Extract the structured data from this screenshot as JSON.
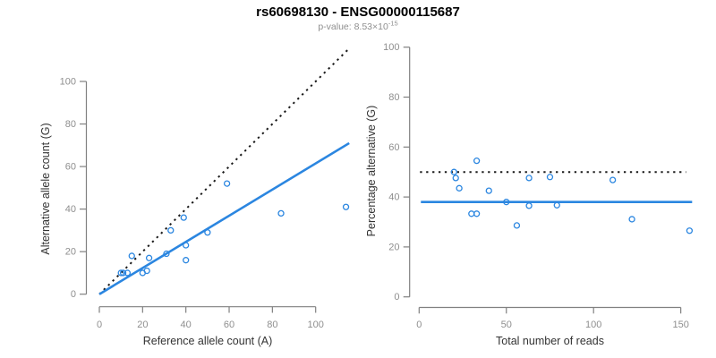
{
  "header": {
    "title": "rs60698130 - ENSG00000115687",
    "subtitle_prefix": "p-value: 8.53×10",
    "subtitle_exponent": "-15"
  },
  "colors": {
    "accent_blue": "#2b86e0",
    "line_black": "#1a1a1a",
    "axis_gray": "#808080",
    "tick_label_gray": "#8f8f8f",
    "axis_title_dark": "#333333"
  },
  "chart_data": [
    {
      "type": "scatter",
      "title": "rs60698130 - ENSG00000115687",
      "subtitle": "p-value: 8.53×10^-15",
      "xlabel": "Reference allele count (A)",
      "ylabel": "Alternative allele count (G)",
      "xlim": [
        0,
        115
      ],
      "ylim": [
        0,
        115
      ],
      "xticks": [
        0,
        20,
        40,
        60,
        80,
        100
      ],
      "yticks": [
        0,
        20,
        40,
        60,
        80,
        100
      ],
      "grid": false,
      "legend": "none",
      "points": [
        [
          10,
          10
        ],
        [
          11,
          10
        ],
        [
          13,
          10
        ],
        [
          15,
          18
        ],
        [
          20,
          10
        ],
        [
          22,
          11
        ],
        [
          23,
          17
        ],
        [
          31,
          19
        ],
        [
          33,
          30
        ],
        [
          39,
          36
        ],
        [
          40,
          16
        ],
        [
          40,
          23
        ],
        [
          50,
          29
        ],
        [
          59,
          52
        ],
        [
          84,
          38
        ],
        [
          114,
          41
        ]
      ],
      "lines": [
        {
          "name": "identity-line",
          "style": "dotted",
          "color_key": "line_black",
          "from": [
            0,
            0
          ],
          "to": [
            115,
            115
          ]
        },
        {
          "name": "regression-line",
          "style": "solid",
          "color_key": "accent_blue",
          "from": [
            0,
            0
          ],
          "to": [
            115.5,
            71
          ]
        }
      ]
    },
    {
      "type": "scatter",
      "xlabel": "Total number of reads",
      "ylabel": "Percentage alternative (G)",
      "xlim": [
        0,
        157
      ],
      "ylim": [
        0,
        100
      ],
      "xticks": [
        0,
        50,
        100,
        150
      ],
      "yticks": [
        0,
        20,
        40,
        60,
        80,
        100
      ],
      "grid": false,
      "legend": "none",
      "points": [
        [
          20,
          50
        ],
        [
          21,
          47.6
        ],
        [
          23,
          43.5
        ],
        [
          30,
          33.3
        ],
        [
          33,
          33.3
        ],
        [
          33,
          54.5
        ],
        [
          40,
          42.5
        ],
        [
          50,
          38
        ],
        [
          56,
          28.6
        ],
        [
          63,
          36.5
        ],
        [
          63,
          47.6
        ],
        [
          75,
          48
        ],
        [
          79,
          36.7
        ],
        [
          111,
          46.8
        ],
        [
          122,
          31.1
        ],
        [
          155,
          26.5
        ]
      ],
      "lines": [
        {
          "name": "fifty-percent-line",
          "style": "dotted",
          "color_key": "line_black",
          "from": [
            0.5,
            50
          ],
          "to": [
            153,
            50
          ]
        },
        {
          "name": "mean-percentage-line",
          "style": "solid",
          "color_key": "accent_blue",
          "from": [
            1,
            38
          ],
          "to": [
            156.5,
            38
          ]
        }
      ]
    }
  ]
}
